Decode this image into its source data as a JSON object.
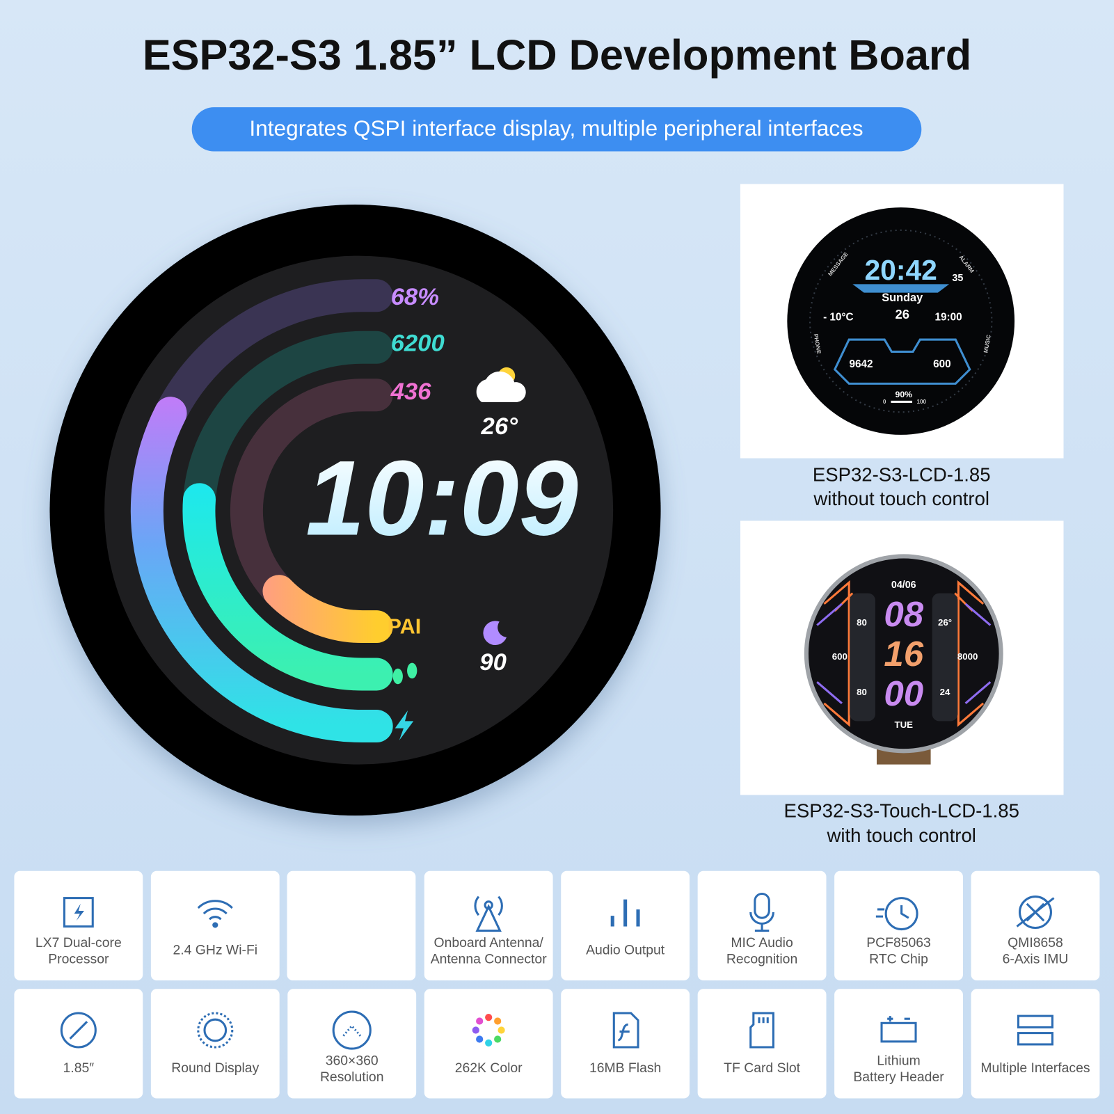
{
  "header": {
    "title": "ESP32-S3 1.85” LCD Development Board",
    "subtitle": "Integrates QSPI interface display, multiple peripheral interfaces"
  },
  "main_display": {
    "battery": "68%",
    "steps": "6200",
    "calories": "436",
    "temperature": "26°",
    "time": "10:09",
    "pai_label": "PAI",
    "sleep": "90"
  },
  "products": [
    {
      "name": "ESP32-S3-LCD-1.85",
      "note": "without touch control",
      "screen": {
        "message": "MESSAGE",
        "alarm": "ALARM",
        "phone": "PHONE",
        "music": "MUSIC",
        "time": "20:42",
        "seconds": "35",
        "day": "Sunday",
        "date": "26",
        "temperature": "- 10°C",
        "alarm_time": "19:00",
        "steps": "9642",
        "calories": "600",
        "battery": "90%",
        "battery_min": "0",
        "battery_max": "100"
      }
    },
    {
      "name": "ESP32-S3-Touch-LCD-1.85",
      "note": "with touch control",
      "screen": {
        "date": "04/06",
        "hour": "08",
        "minute": "16",
        "second": "00",
        "weekday": "TUE",
        "energy": "80",
        "temperature": "26°",
        "calories": "600",
        "steps": "8000",
        "sleep": "80",
        "volume": "24"
      }
    }
  ],
  "features": {
    "rows": [
      [
        {
          "lines": [
            "LX7 Dual-core",
            "Processor"
          ]
        },
        {
          "lines": [
            "2.4 GHz Wi-Fi"
          ]
        },
        {
          "lines": [
            "Onboard Antenna/",
            "Antenna Connector"
          ]
        },
        {
          "lines": [
            "Audio Output"
          ]
        },
        {
          "lines": [
            "MIC Audio",
            "Recognition"
          ]
        },
        {
          "lines": [
            "PCF85063",
            "RTC Chip"
          ]
        },
        {
          "lines": [
            "QMI8658",
            "6-Axis IMU"
          ]
        }
      ],
      [
        {
          "lines": [
            "1.85″"
          ]
        },
        {
          "lines": [
            "Round Display"
          ]
        },
        {
          "lines": [
            "360×360",
            "Resolution"
          ]
        },
        {
          "lines": [
            "262K Color"
          ]
        },
        {
          "lines": [
            "16MB Flash"
          ]
        },
        {
          "lines": [
            "TF Card Slot"
          ]
        },
        {
          "lines": [
            "Lithium",
            "Battery Header"
          ]
        },
        {
          "lines": [
            "Multiple Interfaces"
          ]
        }
      ]
    ]
  }
}
